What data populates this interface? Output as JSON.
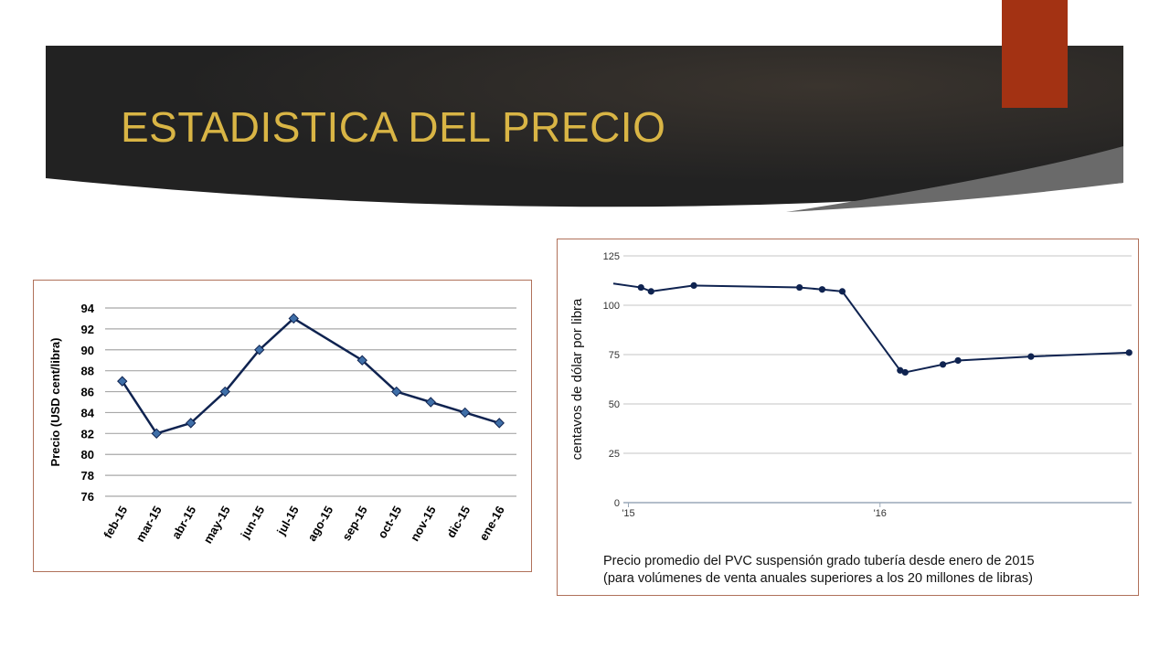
{
  "slide": {
    "title": "ESTADISTICA DEL PRECIO",
    "title_color": "#d9b545",
    "banner_color": "#2b2b2b",
    "accent_color": "#a33213"
  },
  "chart_data": [
    {
      "type": "line",
      "title": "",
      "xlabel": "",
      "ylabel": "Precio (USD cent/libra)",
      "categories": [
        "feb-15",
        "mar-15",
        "abr-15",
        "may-15",
        "jun-15",
        "jul-15",
        "ago-15",
        "sep-15",
        "oct-15",
        "nov-15",
        "dic-15",
        "ene-16"
      ],
      "series": [
        {
          "values": [
            87,
            82,
            83,
            86,
            90,
            93,
            null,
            89,
            86,
            85,
            84,
            83
          ]
        }
      ],
      "ylim": [
        76,
        94
      ],
      "yticks": [
        76,
        78,
        80,
        82,
        84,
        86,
        88,
        90,
        92,
        94
      ],
      "grid": true,
      "line_color": "#0f2350",
      "marker_color": "#3f6fa8",
      "marker": "diamond"
    },
    {
      "type": "line",
      "ylabel": "centavos de dólar por libra",
      "ylim": [
        0,
        125
      ],
      "yticks": [
        0,
        25,
        50,
        75,
        100,
        125
      ],
      "xlim": [
        2014.98,
        2017.0
      ],
      "xticks": [
        {
          "value": 2015.0,
          "label": "'15"
        },
        {
          "value": 2016.0,
          "label": "'16"
        }
      ],
      "series": [
        {
          "x": [
            2014.94,
            2015.05,
            2015.09,
            2015.26,
            2015.68,
            2015.77,
            2015.85,
            2016.08,
            2016.1,
            2016.25,
            2016.31,
            2016.6,
            2016.99
          ],
          "y": [
            111,
            109,
            107,
            110,
            109,
            108,
            107,
            67,
            66,
            70,
            72,
            74,
            76
          ],
          "markers": [
            false,
            true,
            true,
            true,
            true,
            true,
            true,
            true,
            true,
            true,
            true,
            true,
            true
          ]
        }
      ],
      "grid": true,
      "line_color": "#0f2350",
      "caption": [
        "Precio promedio del PVC suspensión grado tubería desde enero de 2015",
        "(para volúmenes de venta anuales superiores a los 20 millones de libras)"
      ]
    }
  ]
}
